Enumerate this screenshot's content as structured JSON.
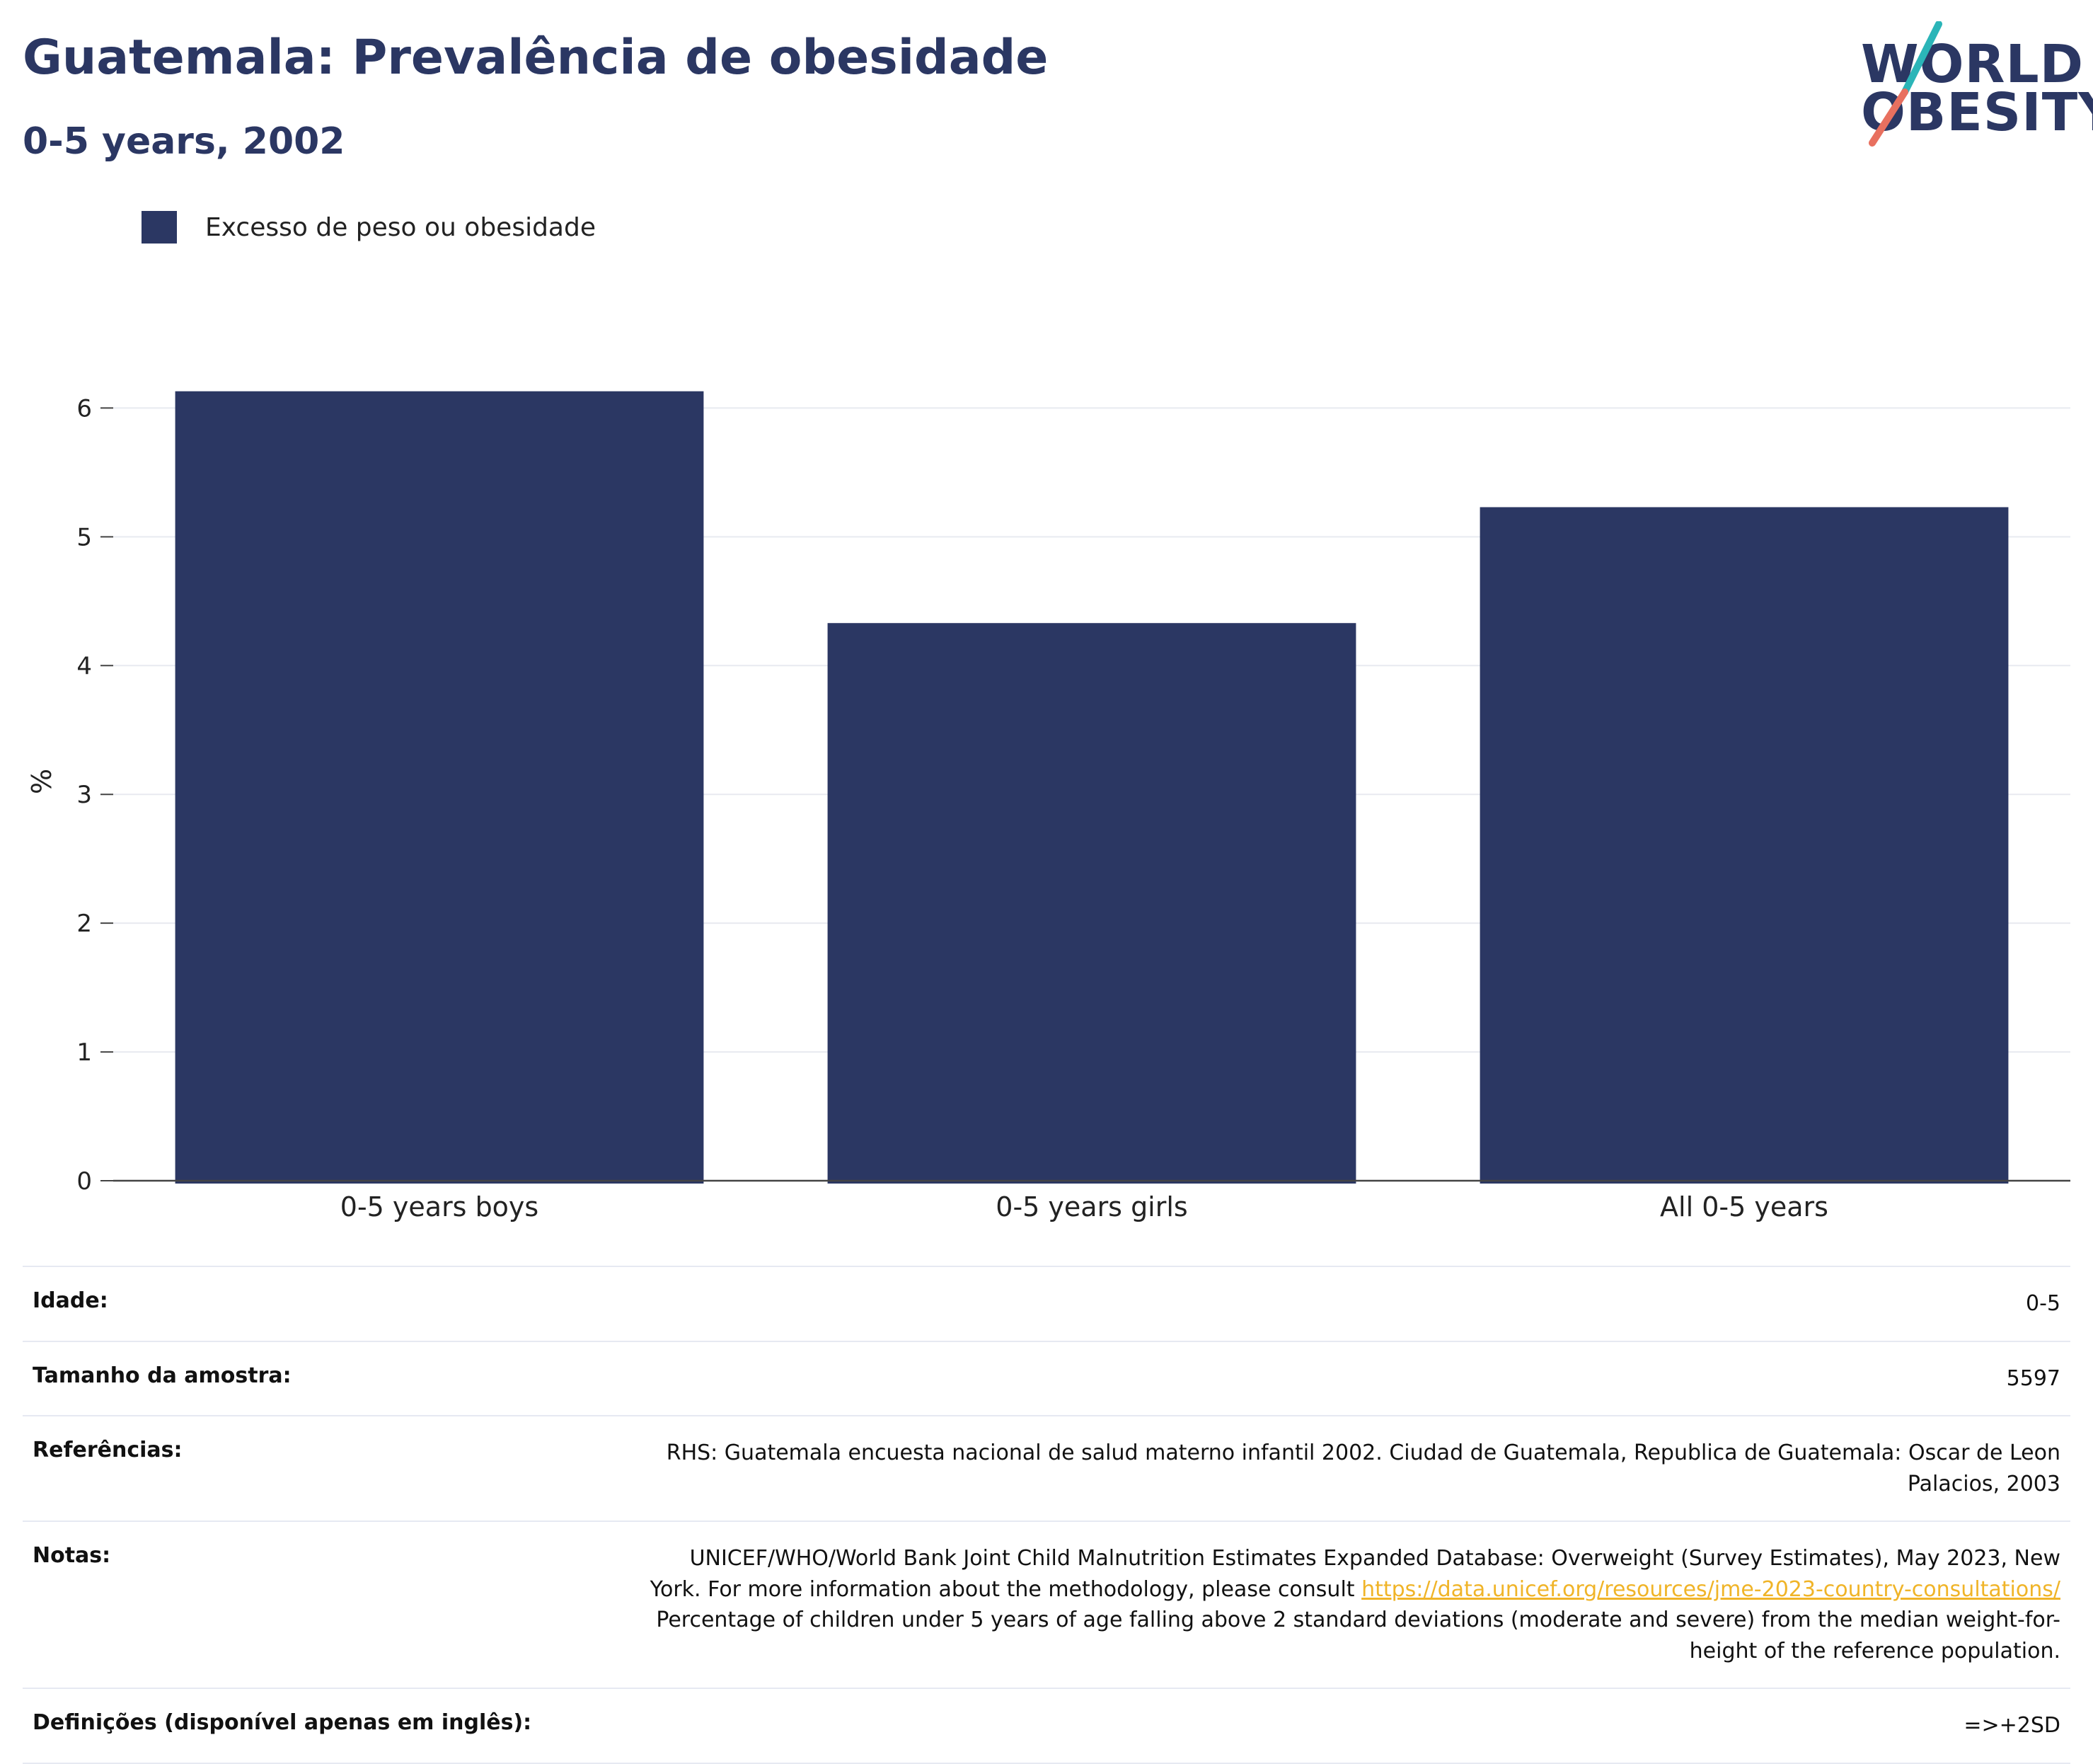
{
  "header": {
    "title": "Guatemala: Prevalência de obesidade",
    "subtitle": "0-5 years, 2002"
  },
  "logo": {
    "line1": "WORLD",
    "line2": "OBESITY",
    "colors": {
      "text": "#2b3763",
      "slash_top": "#2bb5b8",
      "slash_bottom": "#e8705f"
    }
  },
  "legend": {
    "items": [
      {
        "label": "Excesso de peso ou obesidade",
        "color": "#2b3763"
      }
    ]
  },
  "chart_data": {
    "type": "bar",
    "categories": [
      "0-5 years boys",
      "0-5 years girls",
      "All 0-5 years"
    ],
    "series": [
      {
        "name": "Excesso de peso ou obesidade",
        "values": [
          6.13,
          4.33,
          5.23
        ],
        "color": "#2b3763"
      }
    ],
    "ylabel": "%",
    "ylim": [
      0,
      6.2
    ],
    "yticks": [
      0,
      1,
      2,
      3,
      4,
      5,
      6
    ],
    "grid": true,
    "legend_position": "top-left"
  },
  "info_table": {
    "age": {
      "label": "Idade:",
      "value": "0-5"
    },
    "sample": {
      "label": "Tamanho da amostra:",
      "value": "5597"
    },
    "references": {
      "label": "Referências:",
      "value": "RHS: Guatemala encuesta nacional de salud materno infantil 2002. Ciudad de Guatemala, Republica de Guatemala: Oscar de Leon Palacios, 2003"
    },
    "notes": {
      "label": "Notas:",
      "text_before": "UNICEF/WHO/World Bank Joint Child Malnutrition Estimates Expanded Database: Overweight (Survey Estimates), May 2023, New York. For more information about the methodology, please consult ",
      "link": "https://data.unicef.org/resources/jme-2023-country-consultations/",
      "text_after": " Percentage of children under 5 years of age falling above 2 standard deviations (moderate and severe) from the median weight-for-height of the reference population."
    },
    "definitions": {
      "label": "Definições (disponível apenas em inglês):",
      "value": "=>+2SD"
    }
  }
}
